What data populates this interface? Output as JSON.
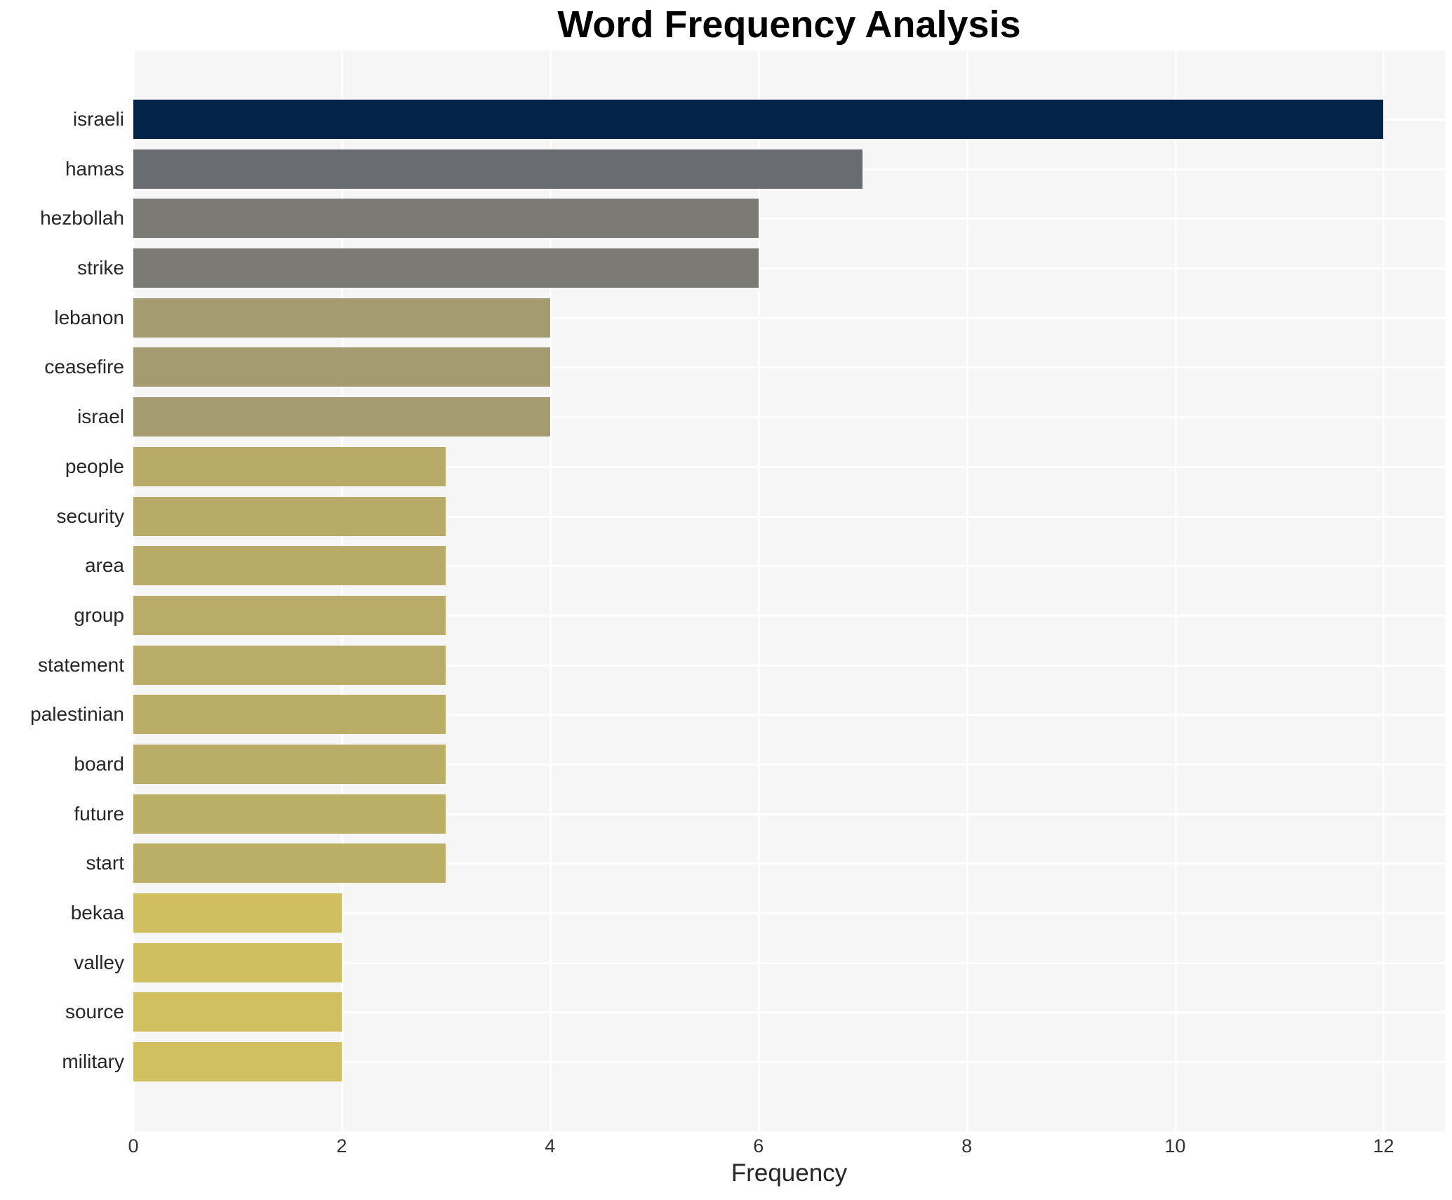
{
  "chart_data": {
    "type": "bar",
    "orientation": "horizontal",
    "title": "Word Frequency Analysis",
    "xlabel": "Frequency",
    "ylabel": "",
    "categories": [
      "israeli",
      "hamas",
      "hezbollah",
      "strike",
      "lebanon",
      "ceasefire",
      "israel",
      "people",
      "security",
      "area",
      "group",
      "statement",
      "palestinian",
      "board",
      "future",
      "start",
      "bekaa",
      "valley",
      "source",
      "military"
    ],
    "values": [
      12,
      7,
      6,
      6,
      4,
      4,
      4,
      3,
      3,
      3,
      3,
      3,
      3,
      3,
      3,
      3,
      2,
      2,
      2,
      2
    ],
    "bar_colors": [
      "#03234b",
      "#696d72",
      "#7b7a74",
      "#7b7a74",
      "#a49b71",
      "#a49b71",
      "#a59c72",
      "#b8ab69",
      "#b8ab69",
      "#b8ab69",
      "#b9ac68",
      "#b9ac68",
      "#baad68",
      "#baad67",
      "#bbae67",
      "#bbae66",
      "#d1be61",
      "#d1be61",
      "#d2bf60",
      "#d2bf60"
    ],
    "xticks": [
      0,
      2,
      4,
      6,
      8,
      10,
      12
    ],
    "xlim": [
      0,
      12.59
    ],
    "grid": "white gridlines on light gray plot background, below bars",
    "legend_position": "none",
    "colors": {
      "plot_background": "#f6f6f7",
      "gridline": "#ffffff",
      "title_text": "#000000",
      "label_text": "#262626",
      "tick_text": "#333333",
      "page_background": "#ffffff"
    }
  }
}
